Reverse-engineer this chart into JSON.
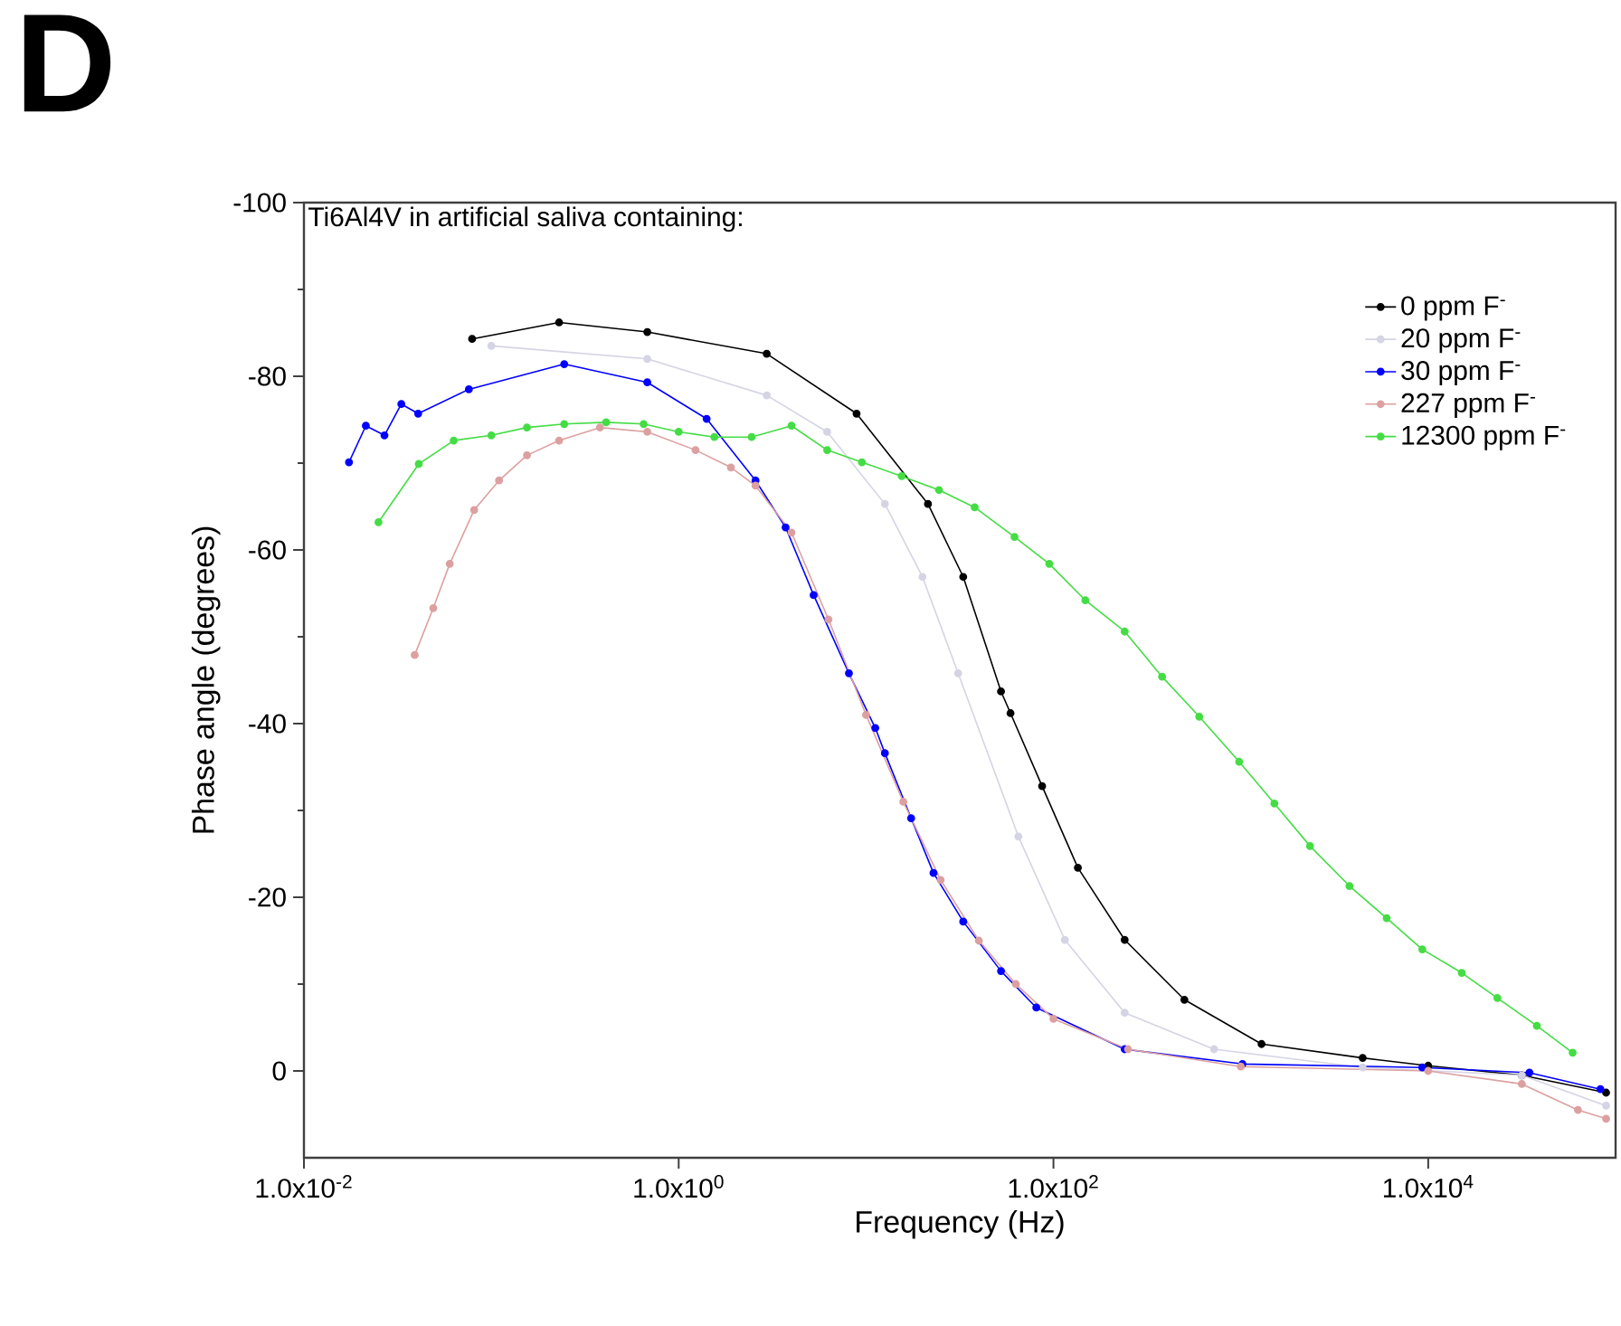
{
  "chart_data": {
    "type": "line",
    "title": "D",
    "xlabel": "Frequency (Hz)",
    "ylabel": "Phase angle (degrees)",
    "legend_title": "Ti6Al4V in artificial saliva containing:",
    "log": "x",
    "xlim": [
      0.01,
      100000
    ],
    "ylim": [
      10,
      -100
    ],
    "xticks": [
      {
        "value": 0.01,
        "label": "1.0x10$^{-2}$"
      },
      {
        "value": 1,
        "label": "1.0x10$^{0}$"
      },
      {
        "value": 100,
        "label": "1.0x10$^{2}$"
      },
      {
        "value": 10000,
        "label": "1.0x10$^{4}$"
      }
    ],
    "yticks": [
      -100,
      -80,
      -60,
      -40,
      -20,
      0
    ],
    "legend": "top right",
    "marker": "circle",
    "series": [
      {
        "name": "0 ppm F$^{-}$",
        "color": "#000000",
        "x": [
          0.079,
          0.23,
          0.68,
          2.95,
          8.9,
          21.4,
          33,
          52.5,
          59,
          87,
          135,
          240,
          500,
          1290,
          4470,
          10000,
          31600,
          89000
        ],
        "values": [
          -84.3,
          -86.2,
          -85.1,
          -82.6,
          -75.7,
          -65.3,
          -56.9,
          -43.7,
          -41.2,
          -32.8,
          -23.4,
          -15.1,
          -8.2,
          -3.1,
          -1.5,
          -0.6,
          0.5,
          2.5
        ]
      },
      {
        "name": "20 ppm F$^{-}$",
        "color": "#d4d4e4",
        "x": [
          0.1,
          0.68,
          2.95,
          6.2,
          12.6,
          20,
          31,
          65,
          115,
          240,
          720,
          4470,
          31600,
          89000
        ],
        "values": [
          -83.5,
          -82,
          -77.8,
          -73.6,
          -65.3,
          -56.9,
          -45.8,
          -27,
          -15.1,
          -6.7,
          -2.5,
          -0.4,
          0.5,
          4
        ]
      },
      {
        "name": "30 ppm F$^{-}$",
        "color": "#0000ff",
        "x": [
          0.0174,
          0.0214,
          0.0269,
          0.0331,
          0.0407,
          0.0759,
          0.245,
          0.68,
          1.41,
          2.57,
          3.72,
          5.25,
          8.1,
          11.2,
          12.6,
          17.4,
          22.9,
          33,
          52.5,
          81,
          240,
          1020,
          9300,
          34700,
          83000
        ],
        "values": [
          -70.1,
          -74.3,
          -73.2,
          -76.8,
          -75.7,
          -78.5,
          -81.4,
          -79.3,
          -75.1,
          -68.0,
          -62.6,
          -54.8,
          -45.8,
          -39.5,
          -36.6,
          -29.1,
          -22.8,
          -17.2,
          -11.5,
          -7.3,
          -2.5,
          -0.8,
          -0.4,
          0.2,
          2.1
        ]
      },
      {
        "name": "227 ppm F$^{-}$",
        "color": "#dca0a0",
        "x": [
          0.039,
          0.049,
          0.06,
          0.081,
          0.11,
          0.155,
          0.23,
          0.38,
          0.68,
          1.23,
          1.9,
          2.57,
          4,
          6.3,
          10,
          15.8,
          25,
          40,
          63,
          100,
          250,
          1000,
          10000,
          31600,
          63000,
          89000
        ],
        "values": [
          -47.9,
          -53.3,
          -58.4,
          -64.6,
          -68.0,
          -70.9,
          -72.6,
          -74.1,
          -73.6,
          -71.5,
          -69.5,
          -67.4,
          -62,
          -52,
          -41,
          -31,
          -22,
          -15,
          -10,
          -6,
          -2.5,
          -0.5,
          0,
          1.5,
          4.5,
          5.5
        ]
      },
      {
        "name": "12300 ppm F$^{-}$",
        "color": "#44dd44",
        "x": [
          0.025,
          0.041,
          0.063,
          0.1,
          0.155,
          0.245,
          0.41,
          0.65,
          1,
          1.55,
          2.45,
          4,
          6.2,
          9.5,
          15.5,
          24.5,
          38,
          62,
          95,
          148,
          240,
          380,
          600,
          980,
          1510,
          2340,
          3800,
          6000,
          9300,
          15100,
          23400,
          38000,
          59000
        ],
        "values": [
          -63.2,
          -69.9,
          -72.6,
          -73.2,
          -74.1,
          -74.5,
          -74.7,
          -74.5,
          -73.6,
          -73.0,
          -73.0,
          -74.3,
          -71.5,
          -70.1,
          -68.5,
          -66.9,
          -64.9,
          -61.5,
          -58.4,
          -54.2,
          -50.6,
          -45.4,
          -40.8,
          -35.6,
          -30.8,
          -25.9,
          -21.3,
          -17.6,
          -14.0,
          -11.3,
          -8.4,
          -5.2,
          -2.1
        ]
      }
    ]
  }
}
